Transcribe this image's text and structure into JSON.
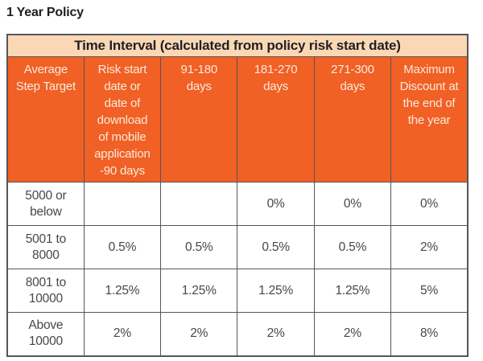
{
  "page": {
    "title": "1 Year Policy"
  },
  "table": {
    "banner": "Time Interval (calculated from policy risk start date)",
    "columns": [
      "Average\nStep Target",
      "Risk start\ndate or\ndate of\ndownload\nof mobile\napplication\n-90 days",
      "91-180\ndays",
      "181-270\ndays",
      "271-300\ndays",
      "Maximum\nDiscount at\nthe end of\nthe year"
    ],
    "rows": [
      {
        "label": "5000 or\nbelow",
        "values": [
          "",
          "",
          "0%",
          "0%",
          "0%"
        ]
      },
      {
        "label": "5001 to\n8000",
        "values": [
          "0.5%",
          "0.5%",
          "0.5%",
          "0.5%",
          "2%"
        ]
      },
      {
        "label": "8001 to\n10000",
        "values": [
          "1.25%",
          "1.25%",
          "1.25%",
          "1.25%",
          "5%"
        ]
      },
      {
        "label": "Above\n10000",
        "values": [
          "2%",
          "2%",
          "2%",
          "2%",
          "8%"
        ]
      }
    ],
    "colors": {
      "orange": "#f16024",
      "peach": "#fad8b6",
      "border": "#55565a",
      "header_text": "#fbeade",
      "body_text": "#46464d",
      "title_text": "#1e1e21"
    }
  }
}
